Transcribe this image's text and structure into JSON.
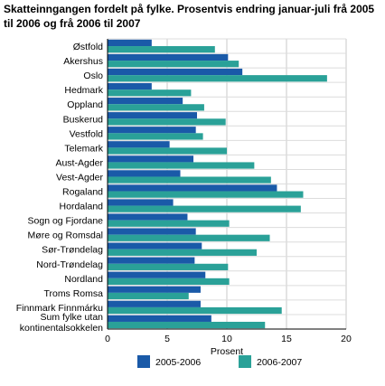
{
  "chart_data": {
    "type": "bar",
    "orientation": "horizontal",
    "title": "Skatteinngangen fordelt på fylke. Prosentvis endring januar-juli frå 2005\ntil 2006 og frå 2006 til 2007",
    "xlabel": "Prosent",
    "ylabel": "",
    "xlim": [
      0,
      20
    ],
    "xticks": [
      0,
      5,
      10,
      15,
      20
    ],
    "grid": true,
    "legend_position": "bottom",
    "categories": [
      "Østfold",
      "Akershus",
      "Oslo",
      "Hedmark",
      "Oppland",
      "Buskerud",
      "Vestfold",
      "Telemark",
      "Aust-Agder",
      "Vest-Agder",
      "Rogaland",
      "Hordaland",
      "Sogn og Fjordane",
      "Møre og Romsdal",
      "Sør-Trøndelag",
      "Nord-Trøndelag",
      "Nordland",
      "Troms Romsa",
      "Finnmark Finnmárku",
      "Sum fylke utan\nkontinentalsokkelen"
    ],
    "series": [
      {
        "name": "2005-2006",
        "color": "#1a5aa8",
        "values": [
          3.7,
          10.1,
          11.3,
          3.7,
          6.3,
          7.5,
          7.4,
          5.2,
          7.2,
          6.1,
          14.2,
          5.5,
          6.7,
          7.4,
          7.9,
          7.3,
          8.2,
          7.8,
          7.8,
          8.7
        ]
      },
      {
        "name": "2006-2007",
        "color": "#2aa198",
        "values": [
          9.0,
          11.0,
          18.4,
          7.0,
          8.1,
          9.9,
          8.0,
          10.0,
          12.3,
          13.7,
          16.4,
          16.2,
          10.2,
          13.6,
          12.5,
          10.1,
          10.2,
          6.8,
          14.6,
          13.2
        ]
      }
    ]
  }
}
